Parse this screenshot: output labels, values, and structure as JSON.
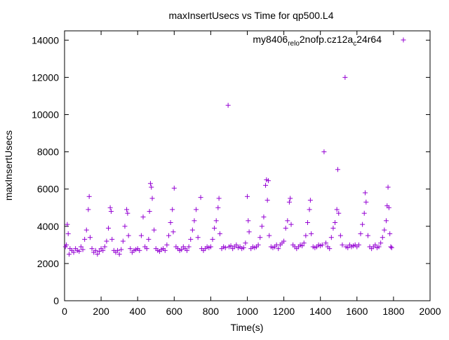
{
  "chart_data": {
    "type": "scatter",
    "title": "maxInsertUsecs vs Time for qp500.L4",
    "xlabel": "Time(s)",
    "ylabel": "maxInsertUsecs",
    "xlim": [
      0,
      2000
    ],
    "ylim": [
      0,
      14500
    ],
    "x_ticks": [
      "0",
      "200",
      "400",
      "600",
      "800",
      "1000",
      "1200",
      "1400",
      "1600",
      "1800",
      "2000"
    ],
    "y_ticks": [
      "0",
      "2000",
      "4000",
      "6000",
      "8000",
      "10000",
      "12000",
      "14000"
    ],
    "grid": false,
    "legend_position": "top-right",
    "marker": "+",
    "series": [
      {
        "name_main": "my8406",
        "name_sub1": "rel",
        "name_mid1": "o",
        "name_mid2": "2nofp.cz12a",
        "name_sub2": "c",
        "name_tail": "24r64",
        "color": "#9400d3",
        "points": [
          [
            5,
            2900
          ],
          [
            10,
            3000
          ],
          [
            15,
            4100
          ],
          [
            20,
            3600
          ],
          [
            25,
            2500
          ],
          [
            30,
            2800
          ],
          [
            40,
            2700
          ],
          [
            50,
            2600
          ],
          [
            60,
            2800
          ],
          [
            70,
            2700
          ],
          [
            80,
            2650
          ],
          [
            90,
            2900
          ],
          [
            100,
            2750
          ],
          [
            110,
            3300
          ],
          [
            120,
            3800
          ],
          [
            130,
            4900
          ],
          [
            135,
            5600
          ],
          [
            140,
            3400
          ],
          [
            150,
            2800
          ],
          [
            160,
            2600
          ],
          [
            170,
            2700
          ],
          [
            180,
            2500
          ],
          [
            190,
            2650
          ],
          [
            200,
            2800
          ],
          [
            210,
            2700
          ],
          [
            220,
            2900
          ],
          [
            230,
            3200
          ],
          [
            240,
            3900
          ],
          [
            250,
            5000
          ],
          [
            255,
            4800
          ],
          [
            260,
            3300
          ],
          [
            270,
            2700
          ],
          [
            280,
            2600
          ],
          [
            290,
            2700
          ],
          [
            300,
            2500
          ],
          [
            310,
            2750
          ],
          [
            320,
            3200
          ],
          [
            330,
            4000
          ],
          [
            340,
            4900
          ],
          [
            345,
            4700
          ],
          [
            350,
            3500
          ],
          [
            360,
            2800
          ],
          [
            370,
            2600
          ],
          [
            380,
            2700
          ],
          [
            390,
            2750
          ],
          [
            400,
            2800
          ],
          [
            410,
            2700
          ],
          [
            420,
            3500
          ],
          [
            430,
            4500
          ],
          [
            440,
            2900
          ],
          [
            450,
            2800
          ],
          [
            460,
            3300
          ],
          [
            465,
            4800
          ],
          [
            470,
            6300
          ],
          [
            475,
            6100
          ],
          [
            480,
            5500
          ],
          [
            490,
            3800
          ],
          [
            500,
            2800
          ],
          [
            510,
            2700
          ],
          [
            520,
            2650
          ],
          [
            530,
            2750
          ],
          [
            540,
            2800
          ],
          [
            550,
            2700
          ],
          [
            560,
            3000
          ],
          [
            570,
            3500
          ],
          [
            580,
            4200
          ],
          [
            590,
            4900
          ],
          [
            595,
            3700
          ],
          [
            600,
            6050
          ],
          [
            610,
            2900
          ],
          [
            620,
            2800
          ],
          [
            630,
            2700
          ],
          [
            640,
            2750
          ],
          [
            650,
            2900
          ],
          [
            660,
            2800
          ],
          [
            670,
            2700
          ],
          [
            680,
            2900
          ],
          [
            690,
            3300
          ],
          [
            700,
            3800
          ],
          [
            710,
            4300
          ],
          [
            720,
            4900
          ],
          [
            730,
            3400
          ],
          [
            745,
            5550
          ],
          [
            750,
            2800
          ],
          [
            760,
            2700
          ],
          [
            770,
            2800
          ],
          [
            780,
            2900
          ],
          [
            790,
            2850
          ],
          [
            800,
            2900
          ],
          [
            810,
            3300
          ],
          [
            820,
            3900
          ],
          [
            830,
            4300
          ],
          [
            840,
            5000
          ],
          [
            845,
            5500
          ],
          [
            850,
            3600
          ],
          [
            860,
            2800
          ],
          [
            870,
            2900
          ],
          [
            880,
            2850
          ],
          [
            895,
            10500
          ],
          [
            900,
            2900
          ],
          [
            910,
            2950
          ],
          [
            920,
            2800
          ],
          [
            930,
            2900
          ],
          [
            940,
            3000
          ],
          [
            950,
            2850
          ],
          [
            960,
            2900
          ],
          [
            970,
            2800
          ],
          [
            980,
            2850
          ],
          [
            990,
            3100
          ],
          [
            1000,
            5600
          ],
          [
            1005,
            4300
          ],
          [
            1010,
            3700
          ],
          [
            1020,
            2800
          ],
          [
            1030,
            2900
          ],
          [
            1040,
            2850
          ],
          [
            1050,
            2900
          ],
          [
            1060,
            3000
          ],
          [
            1070,
            3400
          ],
          [
            1080,
            4000
          ],
          [
            1090,
            4500
          ],
          [
            1100,
            6200
          ],
          [
            1105,
            6500
          ],
          [
            1110,
            5400
          ],
          [
            1115,
            6450
          ],
          [
            1120,
            3500
          ],
          [
            1130,
            2900
          ],
          [
            1140,
            2850
          ],
          [
            1150,
            2900
          ],
          [
            1160,
            3000
          ],
          [
            1170,
            2800
          ],
          [
            1180,
            3000
          ],
          [
            1190,
            3100
          ],
          [
            1200,
            3200
          ],
          [
            1210,
            3900
          ],
          [
            1220,
            4300
          ],
          [
            1230,
            5300
          ],
          [
            1235,
            5500
          ],
          [
            1240,
            4100
          ],
          [
            1250,
            3000
          ],
          [
            1260,
            2900
          ],
          [
            1270,
            2800
          ],
          [
            1280,
            2900
          ],
          [
            1290,
            3000
          ],
          [
            1300,
            2950
          ],
          [
            1310,
            3100
          ],
          [
            1320,
            3500
          ],
          [
            1330,
            4200
          ],
          [
            1340,
            4900
          ],
          [
            1345,
            5400
          ],
          [
            1350,
            3600
          ],
          [
            1360,
            2900
          ],
          [
            1370,
            2850
          ],
          [
            1380,
            2900
          ],
          [
            1390,
            3000
          ],
          [
            1400,
            2950
          ],
          [
            1410,
            3000
          ],
          [
            1420,
            8000
          ],
          [
            1430,
            3100
          ],
          [
            1440,
            2900
          ],
          [
            1450,
            2800
          ],
          [
            1460,
            3400
          ],
          [
            1470,
            3900
          ],
          [
            1480,
            4200
          ],
          [
            1490,
            4900
          ],
          [
            1495,
            7050
          ],
          [
            1500,
            4700
          ],
          [
            1510,
            3500
          ],
          [
            1520,
            3000
          ],
          [
            1535,
            12000
          ],
          [
            1540,
            2900
          ],
          [
            1550,
            2850
          ],
          [
            1560,
            3000
          ],
          [
            1570,
            2900
          ],
          [
            1580,
            2950
          ],
          [
            1590,
            3000
          ],
          [
            1600,
            2900
          ],
          [
            1610,
            3000
          ],
          [
            1620,
            3600
          ],
          [
            1630,
            4100
          ],
          [
            1640,
            4700
          ],
          [
            1645,
            5800
          ],
          [
            1650,
            5300
          ],
          [
            1660,
            3500
          ],
          [
            1670,
            2900
          ],
          [
            1680,
            2800
          ],
          [
            1690,
            2900
          ],
          [
            1700,
            3000
          ],
          [
            1710,
            2850
          ],
          [
            1720,
            2900
          ],
          [
            1730,
            3100
          ],
          [
            1740,
            3400
          ],
          [
            1750,
            3800
          ],
          [
            1760,
            4300
          ],
          [
            1765,
            5100
          ],
          [
            1770,
            6100
          ],
          [
            1775,
            5000
          ],
          [
            1780,
            3600
          ],
          [
            1785,
            2900
          ],
          [
            1790,
            2850
          ]
        ]
      }
    ]
  }
}
